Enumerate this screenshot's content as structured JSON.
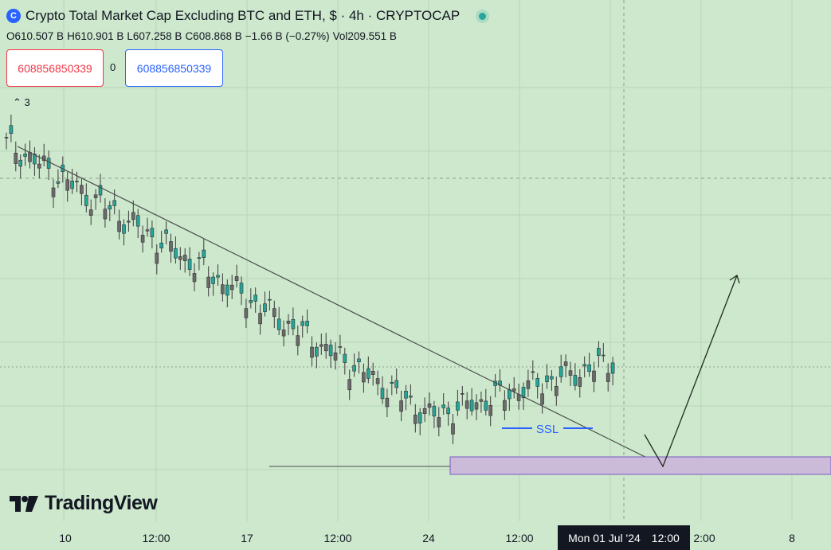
{
  "header": {
    "title": "Crypto Total Market Cap Excluding BTC and ETH, $ · 4h · CRYPTOCAP",
    "logo_text": "C"
  },
  "ohlc": {
    "open": "O610.507 B",
    "high": "H610.901 B",
    "low": "L607.258 B",
    "close": "C608.868 B",
    "change": "−1.66 B (−0.27%)",
    "volume": "Vol209.551 B"
  },
  "quote": {
    "sell": "608856850339",
    "spread": "0",
    "buy": "608856850339"
  },
  "collapsed_count": "3",
  "brand": "TradingView",
  "crosshair_label": {
    "date": "Mon 01 Jul '24",
    "time": "12:00"
  },
  "colors": {
    "background": "#cde8cd",
    "up": "#26a69a",
    "down": "#6b6b6b",
    "zone_fill": "#cbbbd9",
    "zone_border": "#7e57c2",
    "ssl": "#2962ff",
    "sell_border": "#f23645",
    "buy_border": "#2962ff"
  },
  "chart_data": {
    "type": "candlestick",
    "title": "Crypto Total Market Cap Excluding BTC and ETH",
    "interval": "4h",
    "xlabel": "",
    "ylabel": "",
    "x_ticks": [
      "10",
      "12:00",
      "17",
      "12:00",
      "24",
      "12:00",
      "2:00",
      "8"
    ],
    "candles": [
      [
        110,
        88,
        150,
        84
      ],
      [
        88,
        80,
        92,
        70
      ],
      [
        80,
        68,
        86,
        62
      ],
      [
        68,
        80,
        86,
        60
      ],
      [
        80,
        100,
        108,
        74
      ],
      [
        100,
        110,
        118,
        96
      ],
      [
        110,
        125,
        130,
        104
      ],
      [
        125,
        132,
        138,
        120
      ],
      [
        132,
        140,
        150,
        128
      ],
      [
        140,
        152,
        160,
        136
      ],
      [
        152,
        148,
        156,
        140
      ],
      [
        148,
        145,
        152,
        138
      ],
      [
        145,
        150,
        160,
        140
      ],
      [
        150,
        146,
        156,
        142
      ],
      [
        146,
        158,
        164,
        140
      ],
      [
        158,
        156,
        162,
        150
      ],
      [
        156,
        160,
        168,
        152
      ],
      [
        160,
        152,
        166,
        148
      ],
      [
        152,
        154,
        158,
        144
      ],
      [
        154,
        148,
        160,
        142
      ],
      [
        148,
        140,
        152,
        136
      ],
      [
        140,
        148,
        156,
        130
      ],
      [
        148,
        142,
        154,
        136
      ],
      [
        142,
        146,
        150,
        138
      ],
      [
        146,
        140,
        150,
        134
      ],
      [
        140,
        152,
        158,
        136
      ],
      [
        152,
        150,
        156,
        144
      ],
      [
        150,
        154,
        160,
        146
      ],
      [
        154,
        148,
        158,
        142
      ],
      [
        148,
        144,
        152,
        140
      ],
      [
        144,
        150,
        156,
        138
      ],
      [
        150,
        146,
        158,
        140
      ],
      [
        146,
        151,
        156,
        142
      ],
      [
        151,
        146,
        156,
        140
      ],
      [
        146,
        148,
        154,
        140
      ],
      [
        148,
        145,
        152,
        138
      ],
      [
        145,
        149,
        156,
        140
      ],
      [
        149,
        157,
        162,
        144
      ],
      [
        157,
        155,
        166,
        150
      ],
      [
        155,
        150,
        160,
        144
      ],
      [
        150,
        153,
        158,
        146
      ],
      [
        153,
        150,
        158,
        145
      ],
      [
        150,
        146,
        155,
        140
      ],
      [
        146,
        150,
        156,
        140
      ],
      [
        150,
        158,
        164,
        144
      ]
    ]
  }
}
